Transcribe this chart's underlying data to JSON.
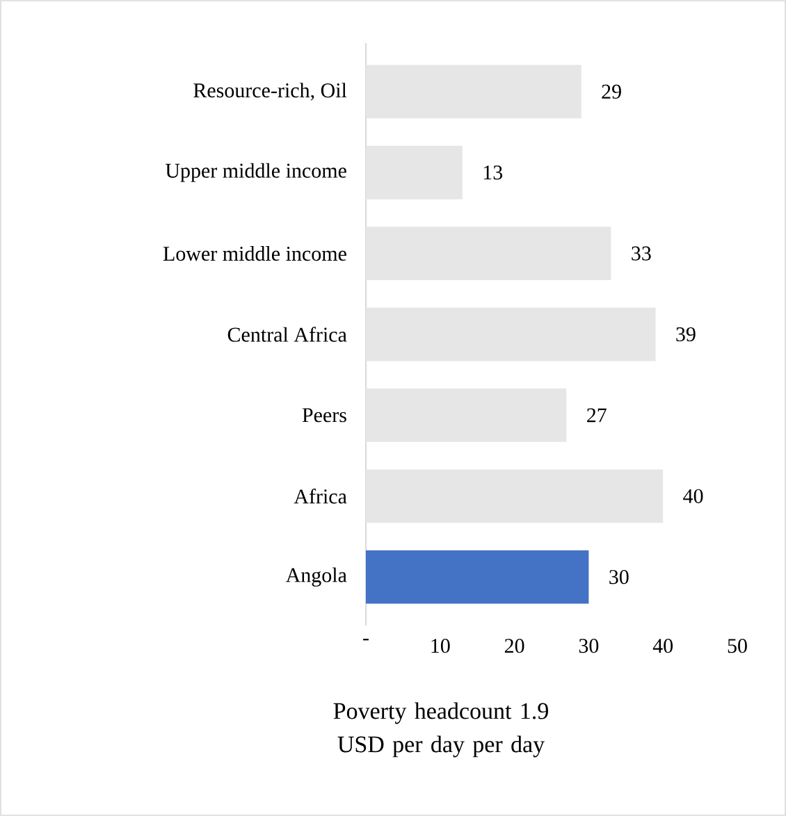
{
  "chart_data": {
    "type": "bar",
    "orientation": "horizontal",
    "xlabel": "Poverty headcount 1.9 USD per day per day",
    "categories": [
      "Resource-rich, Oil",
      "Upper middle income",
      "Lower middle income",
      "Central Africa",
      "Peers",
      "Africa",
      "Angola"
    ],
    "values": [
      29,
      13,
      33,
      39,
      27,
      40,
      30
    ],
    "colors": [
      "#e6e6e6",
      "#e6e6e6",
      "#e6e6e6",
      "#e6e6e6",
      "#e6e6e6",
      "#e6e6e6",
      "#4472c4"
    ],
    "xlim": [
      0,
      50
    ],
    "xticks": [
      {
        "value": 0,
        "label": "-"
      },
      10,
      20,
      30,
      40,
      50
    ],
    "data_labels": true
  }
}
